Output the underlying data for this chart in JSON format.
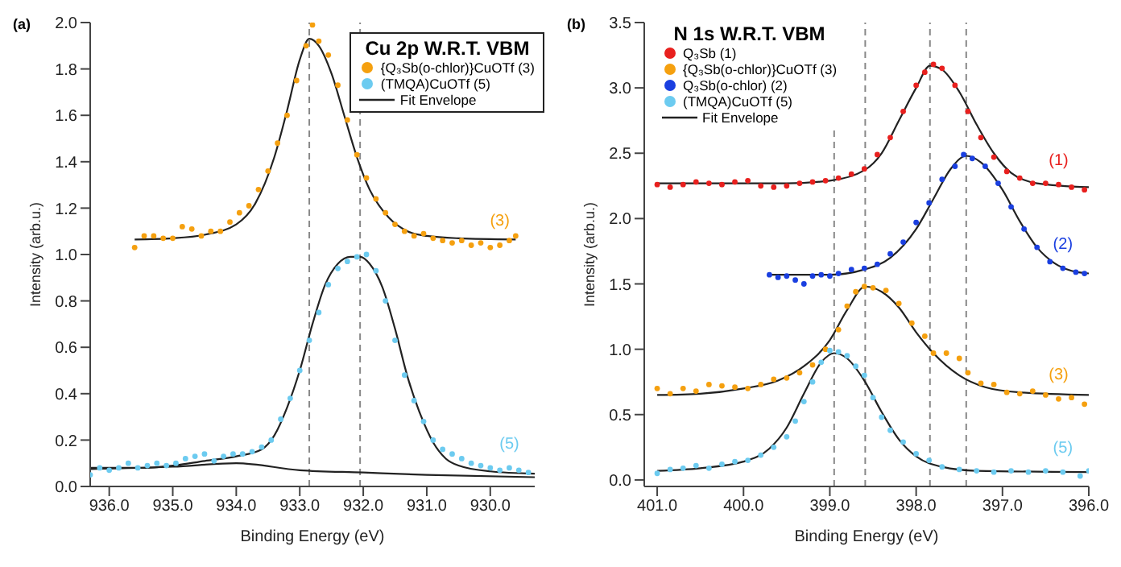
{
  "chart_data": [
    {
      "type": "scatter",
      "title": "Cu 2p W.R.T. VBM",
      "xlabel": "Binding Energy (eV)",
      "ylabel": "Intensity (arb.u.)",
      "xlim": [
        936.3,
        929.3
      ],
      "ylim": [
        0,
        2.0
      ],
      "xticks": [
        {
          "value": 936,
          "label": "936.0"
        },
        {
          "value": 935,
          "label": "935.0"
        },
        {
          "value": 934,
          "label": "934.0"
        },
        {
          "value": 933,
          "label": "933.0"
        },
        {
          "value": 932,
          "label": "932.0"
        },
        {
          "value": 931,
          "label": "931.0"
        },
        {
          "value": 930,
          "label": "930.0"
        }
      ],
      "yticks": [
        {
          "value": 0,
          "label": "0.0"
        },
        0.2,
        0.4,
        0.6,
        0.8,
        {
          "value": 1,
          "label": "1.0"
        },
        1.2,
        1.4,
        1.6,
        1.8,
        {
          "value": 2,
          "label": "2.0"
        }
      ],
      "legend": "top right",
      "line_style": "solid",
      "annotations": [
        "(a)",
        "(3)",
        "(5)"
      ],
      "ref_lines": [
        {
          "axis": "x",
          "value": 932.85,
          "line_style": "dashed"
        },
        {
          "axis": "x",
          "value": 932.05,
          "line_style": "dashed"
        }
      ],
      "series": [
        {
          "marker": "circle",
          "name": "{Q₃Sb(o-chlor)}CuOTf (3)",
          "color": "#f5a00f",
          "x": [
            935.6,
            935.45,
            935.3,
            935.15,
            935.0,
            934.85,
            934.7,
            934.55,
            934.4,
            934.25,
            934.1,
            933.95,
            933.8,
            933.65,
            933.5,
            933.35,
            933.2,
            933.05,
            932.9,
            932.8,
            932.7,
            932.55,
            932.4,
            932.25,
            932.1,
            931.95,
            931.8,
            931.65,
            931.5,
            931.35,
            931.2,
            931.05,
            930.9,
            930.75,
            930.6,
            930.45,
            930.3,
            930.15,
            930.0,
            929.85,
            929.7,
            929.6
          ],
          "values": [
            1.03,
            1.08,
            1.08,
            1.07,
            1.07,
            1.12,
            1.11,
            1.08,
            1.1,
            1.1,
            1.14,
            1.18,
            1.21,
            1.28,
            1.36,
            1.48,
            1.6,
            1.75,
            1.9,
            1.99,
            1.92,
            1.86,
            1.73,
            1.58,
            1.43,
            1.33,
            1.24,
            1.18,
            1.13,
            1.1,
            1.08,
            1.09,
            1.07,
            1.06,
            1.05,
            1.06,
            1.04,
            1.05,
            1.03,
            1.04,
            1.06,
            1.08
          ]
        },
        {
          "marker": "circle",
          "name": "(TMQA)CuOTf (5)",
          "color": "#6ccbf0",
          "x": [
            936.3,
            936.15,
            936.0,
            935.85,
            935.7,
            935.55,
            935.4,
            935.25,
            935.1,
            934.95,
            934.8,
            934.65,
            934.5,
            934.35,
            934.2,
            934.05,
            933.9,
            933.75,
            933.6,
            933.45,
            933.3,
            933.15,
            933.0,
            932.85,
            932.7,
            932.55,
            932.4,
            932.25,
            932.1,
            931.95,
            931.8,
            931.65,
            931.5,
            931.35,
            931.2,
            931.05,
            930.9,
            930.75,
            930.6,
            930.45,
            930.3,
            930.15,
            930.0,
            929.85,
            929.7,
            929.55,
            929.4
          ],
          "values": [
            0.05,
            0.08,
            0.07,
            0.08,
            0.1,
            0.08,
            0.09,
            0.1,
            0.09,
            0.1,
            0.12,
            0.13,
            0.14,
            0.11,
            0.13,
            0.14,
            0.14,
            0.15,
            0.17,
            0.2,
            0.29,
            0.38,
            0.5,
            0.63,
            0.75,
            0.87,
            0.94,
            0.97,
            0.99,
            1.0,
            0.93,
            0.8,
            0.63,
            0.48,
            0.37,
            0.28,
            0.2,
            0.16,
            0.14,
            0.12,
            0.1,
            0.09,
            0.08,
            0.07,
            0.08,
            0.07,
            0.06
          ]
        },
        {
          "type": "line",
          "marker": "none",
          "name": "Fit Envelope",
          "color": "#222222",
          "x": [
            935.6,
            935.0,
            934.5,
            934.0,
            933.7,
            933.4,
            933.2,
            933.0,
            932.85,
            932.7,
            932.5,
            932.3,
            932.1,
            931.9,
            931.6,
            931.3,
            931.0,
            930.5,
            929.6
          ],
          "values": [
            1.065,
            1.07,
            1.085,
            1.13,
            1.22,
            1.42,
            1.62,
            1.84,
            1.93,
            1.9,
            1.78,
            1.6,
            1.42,
            1.28,
            1.16,
            1.1,
            1.08,
            1.07,
            1.065
          ]
        },
        {
          "type": "line",
          "marker": "none",
          "color": "#222222",
          "x": [
            936.3,
            935.5,
            935.0,
            934.5,
            934.0,
            933.6,
            933.4,
            933.2,
            933.0,
            932.8,
            932.6,
            932.4,
            932.2,
            932.05,
            931.9,
            931.7,
            931.5,
            931.3,
            931.1,
            930.9,
            930.7,
            930.5,
            930.0,
            929.3
          ],
          "values": [
            0.08,
            0.08,
            0.09,
            0.11,
            0.13,
            0.16,
            0.22,
            0.34,
            0.5,
            0.7,
            0.87,
            0.96,
            0.99,
            0.99,
            0.96,
            0.86,
            0.68,
            0.47,
            0.31,
            0.19,
            0.12,
            0.09,
            0.065,
            0.055
          ]
        },
        {
          "type": "line",
          "marker": "none",
          "color": "#222222",
          "x": [
            936.3,
            935.0,
            934.0,
            933.0,
            932.0,
            931.0,
            929.3
          ],
          "values": [
            0.075,
            0.085,
            0.1,
            0.07,
            0.06,
            0.05,
            0.04
          ]
        }
      ]
    },
    {
      "type": "scatter",
      "title": "N 1s W.R.T. VBM",
      "xlabel": "Binding Energy (eV)",
      "ylabel": "Intensity (arb.u.)",
      "xlim": [
        401.15,
        396.0
      ],
      "ylim": [
        -0.05,
        3.5
      ],
      "xticks": [
        {
          "value": 401,
          "label": "401.0"
        },
        {
          "value": 400,
          "label": "400.0"
        },
        {
          "value": 399,
          "label": "399.0"
        },
        {
          "value": 398,
          "label": "398.0"
        },
        {
          "value": 397,
          "label": "397.0"
        },
        {
          "value": 396,
          "label": "396.0"
        }
      ],
      "yticks": [
        {
          "value": 0,
          "label": "0.0"
        },
        0.5,
        {
          "value": 1,
          "label": "1.0"
        },
        1.5,
        {
          "value": 2,
          "label": "2.0"
        },
        2.5,
        {
          "value": 3,
          "label": "3.0"
        },
        3.5
      ],
      "legend": "top left",
      "line_style": "solid",
      "annotations": [
        "(b)",
        "(1)",
        "(3)",
        "(2)",
        "(5)"
      ],
      "ref_lines": [
        {
          "axis": "x",
          "value": 398.95,
          "line_style": "dashed"
        },
        {
          "axis": "x",
          "value": 398.59,
          "line_style": "dashed"
        },
        {
          "axis": "x",
          "value": 397.84,
          "line_style": "dashed"
        },
        {
          "axis": "x",
          "value": 397.42,
          "line_style": "dashed"
        }
      ],
      "series": [
        {
          "marker": "circle",
          "name": "Q₃Sb (1)",
          "color": "#e8201e",
          "x": [
            401.0,
            400.85,
            400.7,
            400.55,
            400.4,
            400.25,
            400.1,
            399.95,
            399.8,
            399.65,
            399.5,
            399.35,
            399.2,
            399.05,
            398.9,
            398.75,
            398.6,
            398.45,
            398.3,
            398.15,
            398.0,
            397.9,
            397.8,
            397.7,
            397.55,
            397.4,
            397.25,
            397.1,
            396.95,
            396.8,
            396.65,
            396.5,
            396.35,
            396.2,
            396.05
          ],
          "values": [
            2.26,
            2.24,
            2.26,
            2.28,
            2.27,
            2.26,
            2.28,
            2.29,
            2.25,
            2.24,
            2.25,
            2.27,
            2.28,
            2.29,
            2.31,
            2.34,
            2.38,
            2.49,
            2.62,
            2.82,
            3.02,
            3.12,
            3.18,
            3.15,
            3.02,
            2.82,
            2.62,
            2.47,
            2.36,
            2.31,
            2.27,
            2.27,
            2.26,
            2.24,
            2.22
          ]
        },
        {
          "marker": "circle",
          "name": "{Q₃Sb(o-chlor)}CuOTf (3)",
          "color": "#f5a00f",
          "x": [
            401.0,
            400.85,
            400.7,
            400.55,
            400.4,
            400.25,
            400.1,
            399.95,
            399.8,
            399.65,
            399.5,
            399.35,
            399.2,
            399.05,
            398.9,
            398.8,
            398.7,
            398.6,
            398.5,
            398.35,
            398.2,
            398.05,
            397.9,
            397.8,
            397.65,
            397.5,
            397.4,
            397.25,
            397.1,
            396.95,
            396.8,
            396.65,
            396.5,
            396.35,
            396.2,
            396.05
          ],
          "values": [
            0.7,
            0.66,
            0.7,
            0.68,
            0.73,
            0.72,
            0.71,
            0.7,
            0.73,
            0.77,
            0.78,
            0.82,
            0.88,
            1.0,
            1.15,
            1.33,
            1.44,
            1.48,
            1.47,
            1.45,
            1.35,
            1.2,
            1.1,
            0.97,
            0.97,
            0.93,
            0.82,
            0.74,
            0.73,
            0.67,
            0.66,
            0.68,
            0.65,
            0.62,
            0.63,
            0.58
          ]
        },
        {
          "marker": "circle",
          "name": "Q₃Sb(o-chlor) (2)",
          "color": "#1a3fe0",
          "x": [
            399.7,
            399.6,
            399.5,
            399.4,
            399.3,
            399.2,
            399.1,
            399.0,
            398.9,
            398.75,
            398.6,
            398.45,
            398.3,
            398.15,
            398.0,
            397.85,
            397.7,
            397.55,
            397.45,
            397.35,
            397.2,
            397.05,
            396.9,
            396.75,
            396.6,
            396.45,
            396.3,
            396.15,
            396.05
          ],
          "values": [
            1.57,
            1.55,
            1.56,
            1.53,
            1.5,
            1.56,
            1.57,
            1.56,
            1.58,
            1.61,
            1.62,
            1.65,
            1.73,
            1.82,
            1.97,
            2.12,
            2.3,
            2.4,
            2.49,
            2.46,
            2.4,
            2.27,
            2.09,
            1.92,
            1.78,
            1.67,
            1.62,
            1.59,
            1.58
          ]
        },
        {
          "marker": "circle",
          "name": "(TMQA)CuOTf (5)",
          "color": "#6ccbf0",
          "x": [
            401.0,
            400.85,
            400.7,
            400.55,
            400.4,
            400.25,
            400.1,
            399.95,
            399.8,
            399.65,
            399.5,
            399.4,
            399.3,
            399.2,
            399.1,
            399.0,
            398.9,
            398.8,
            398.7,
            398.6,
            398.5,
            398.4,
            398.3,
            398.15,
            398.0,
            397.85,
            397.7,
            397.5,
            397.3,
            397.1,
            396.9,
            396.7,
            396.5,
            396.3,
            396.1,
            396.0
          ],
          "values": [
            0.05,
            0.08,
            0.09,
            0.11,
            0.09,
            0.12,
            0.14,
            0.15,
            0.19,
            0.25,
            0.33,
            0.45,
            0.6,
            0.75,
            0.9,
            0.99,
            0.98,
            0.95,
            0.87,
            0.8,
            0.63,
            0.48,
            0.38,
            0.29,
            0.2,
            0.15,
            0.1,
            0.08,
            0.07,
            0.06,
            0.07,
            0.06,
            0.07,
            0.06,
            0.03,
            0.07
          ]
        },
        {
          "type": "line",
          "marker": "none",
          "name": "Fit Envelope",
          "color": "#222222",
          "x": [
            401.0,
            399.5,
            399.0,
            398.6,
            398.4,
            398.2,
            398.0,
            397.84,
            397.7,
            397.5,
            397.3,
            397.1,
            396.9,
            396.6,
            396.0
          ],
          "values": [
            2.27,
            2.27,
            2.29,
            2.37,
            2.5,
            2.75,
            3.0,
            3.17,
            3.14,
            2.97,
            2.72,
            2.5,
            2.35,
            2.27,
            2.24
          ]
        },
        {
          "type": "line",
          "marker": "none",
          "color": "#222222",
          "x": [
            399.7,
            399.0,
            398.6,
            398.3,
            398.0,
            397.8,
            397.6,
            397.42,
            397.25,
            397.0,
            396.8,
            396.6,
            396.4,
            396.2,
            396.0
          ],
          "values": [
            1.57,
            1.57,
            1.61,
            1.7,
            1.92,
            2.15,
            2.38,
            2.48,
            2.43,
            2.22,
            1.98,
            1.78,
            1.66,
            1.6,
            1.58
          ]
        },
        {
          "type": "line",
          "marker": "none",
          "color": "#222222",
          "x": [
            401.0,
            400.5,
            400.0,
            399.6,
            399.3,
            399.0,
            398.8,
            398.59,
            398.4,
            398.2,
            398.0,
            397.8,
            397.5,
            397.2,
            396.8,
            396.0
          ],
          "values": [
            0.65,
            0.66,
            0.7,
            0.76,
            0.87,
            1.07,
            1.3,
            1.48,
            1.44,
            1.32,
            1.13,
            0.97,
            0.8,
            0.71,
            0.67,
            0.65
          ]
        },
        {
          "type": "line",
          "marker": "none",
          "color": "#222222",
          "x": [
            401.0,
            400.5,
            400.0,
            399.7,
            399.5,
            399.3,
            399.1,
            398.95,
            398.8,
            398.6,
            398.4,
            398.2,
            398.0,
            397.7,
            397.3,
            396.0
          ],
          "values": [
            0.07,
            0.09,
            0.14,
            0.24,
            0.4,
            0.66,
            0.9,
            0.97,
            0.93,
            0.76,
            0.52,
            0.31,
            0.18,
            0.1,
            0.07,
            0.06
          ]
        }
      ]
    }
  ]
}
